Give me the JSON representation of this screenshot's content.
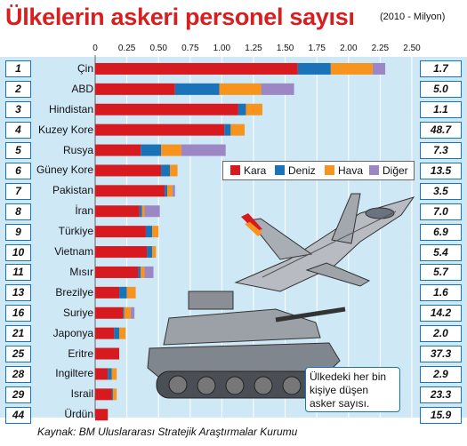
{
  "title": "Ülkelerin askeri personel sayısı",
  "subtitle": "(2010 - Milyon)",
  "source": "Kaynak: BM Uluslararası Stratejik Araştırmalar Kurumu",
  "note": [
    "Ülkedeki her bin",
    "kişiye düşen",
    "asker sayısı."
  ],
  "legend": [
    {
      "label": "Kara",
      "color": "#d71920"
    },
    {
      "label": "Deniz",
      "color": "#1a72b8"
    },
    {
      "label": "Hava",
      "color": "#f7941d"
    },
    {
      "label": "Diğer",
      "color": "#9c86c4"
    }
  ],
  "chart_data": {
    "type": "bar",
    "orientation": "horizontal",
    "stacked": true,
    "title": "Ülkelerin askeri personel sayısı",
    "subtitle": "(2010 - Milyon)",
    "xlim": [
      0,
      2.5
    ],
    "xticks": [
      "0",
      "0.25",
      "0.50",
      "0.75",
      "1.00",
      "1.25",
      "1.50",
      "1.75",
      "2.00",
      "2.25",
      "2.50"
    ],
    "grid": true,
    "legend_position": "center-right",
    "categories": [
      "Çin",
      "ABD",
      "Hindistan",
      "Kuzey Kore",
      "Rusya",
      "Güney Kore",
      "Pakistan",
      "İran",
      "Türkiye",
      "Vietnam",
      "Mısır",
      "Brezilye",
      "Suriye",
      "Japonya",
      "Eritre",
      "Ingiltere",
      "Israil",
      "Ürdün"
    ],
    "ranks": [
      "1",
      "2",
      "3",
      "4",
      "5",
      "6",
      "7",
      "8",
      "9",
      "10",
      "11",
      "13",
      "16",
      "21",
      "25",
      "28",
      "29",
      "44"
    ],
    "per_thousand": [
      "1.7",
      "5.0",
      "1.1",
      "48.7",
      "7.3",
      "13.5",
      "3.5",
      "7.0",
      "6.9",
      "5.4",
      "5.7",
      "1.6",
      "14.2",
      "2.0",
      "37.3",
      "2.9",
      "23.3",
      "15.9"
    ],
    "series": [
      {
        "name": "Kara",
        "color": "#d71920",
        "values": [
          1.6,
          0.63,
          1.13,
          1.02,
          0.36,
          0.52,
          0.55,
          0.35,
          0.4,
          0.41,
          0.34,
          0.19,
          0.22,
          0.15,
          0.19,
          0.1,
          0.13,
          0.1
        ]
      },
      {
        "name": "Deniz",
        "color": "#1a72b8",
        "values": [
          0.26,
          0.35,
          0.06,
          0.05,
          0.16,
          0.07,
          0.02,
          0.02,
          0.05,
          0.04,
          0.02,
          0.06,
          0.01,
          0.04,
          0.0,
          0.03,
          0.01,
          0.0
        ]
      },
      {
        "name": "Hava",
        "color": "#f7941d",
        "values": [
          0.33,
          0.33,
          0.13,
          0.11,
          0.16,
          0.06,
          0.04,
          0.02,
          0.05,
          0.03,
          0.03,
          0.07,
          0.05,
          0.05,
          0.0,
          0.04,
          0.03,
          0.0
        ]
      },
      {
        "name": "Diğer",
        "color": "#9c86c4",
        "values": [
          0.1,
          0.26,
          0.0,
          0.0,
          0.35,
          0.0,
          0.02,
          0.12,
          0.0,
          0.0,
          0.07,
          0.0,
          0.03,
          0.0,
          0.0,
          0.0,
          0.0,
          0.0
        ]
      }
    ]
  }
}
